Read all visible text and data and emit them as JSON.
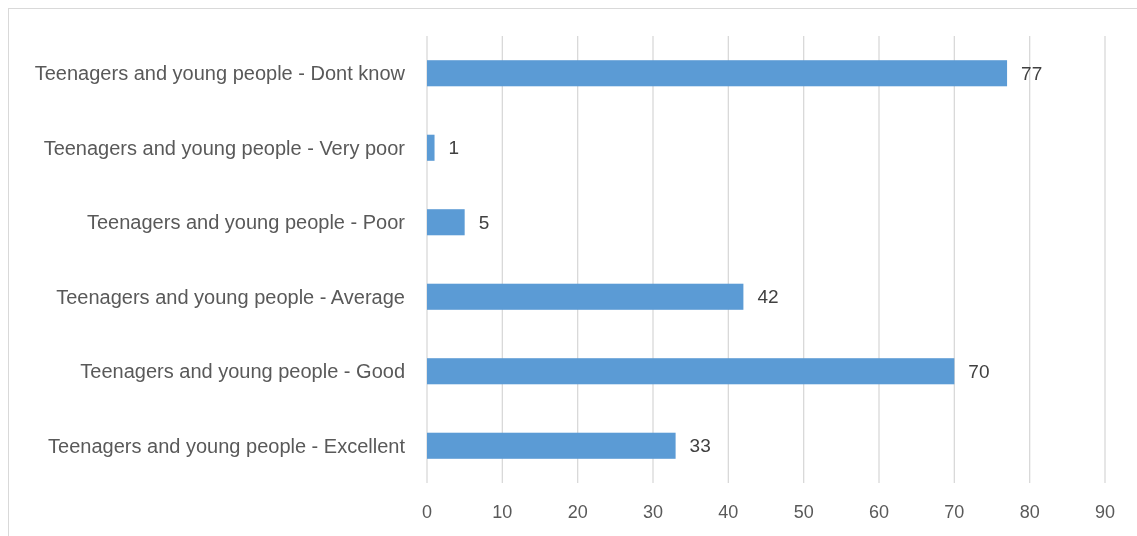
{
  "chart_data": {
    "type": "bar",
    "orientation": "horizontal",
    "categories": [
      "Teenagers and young people - Dont know",
      "Teenagers and young people - Very poor",
      "Teenagers and young people - Poor",
      "Teenagers and young people - Average",
      "Teenagers and young people - Good",
      "Teenagers and young people - Excellent"
    ],
    "values": [
      77,
      1,
      5,
      42,
      70,
      33
    ],
    "color": "#5b9bd5",
    "xlim": [
      0,
      90
    ],
    "xticks": [
      0,
      10,
      20,
      30,
      40,
      50,
      60,
      70,
      80,
      90
    ],
    "grid": "x",
    "data_labels": true
  }
}
